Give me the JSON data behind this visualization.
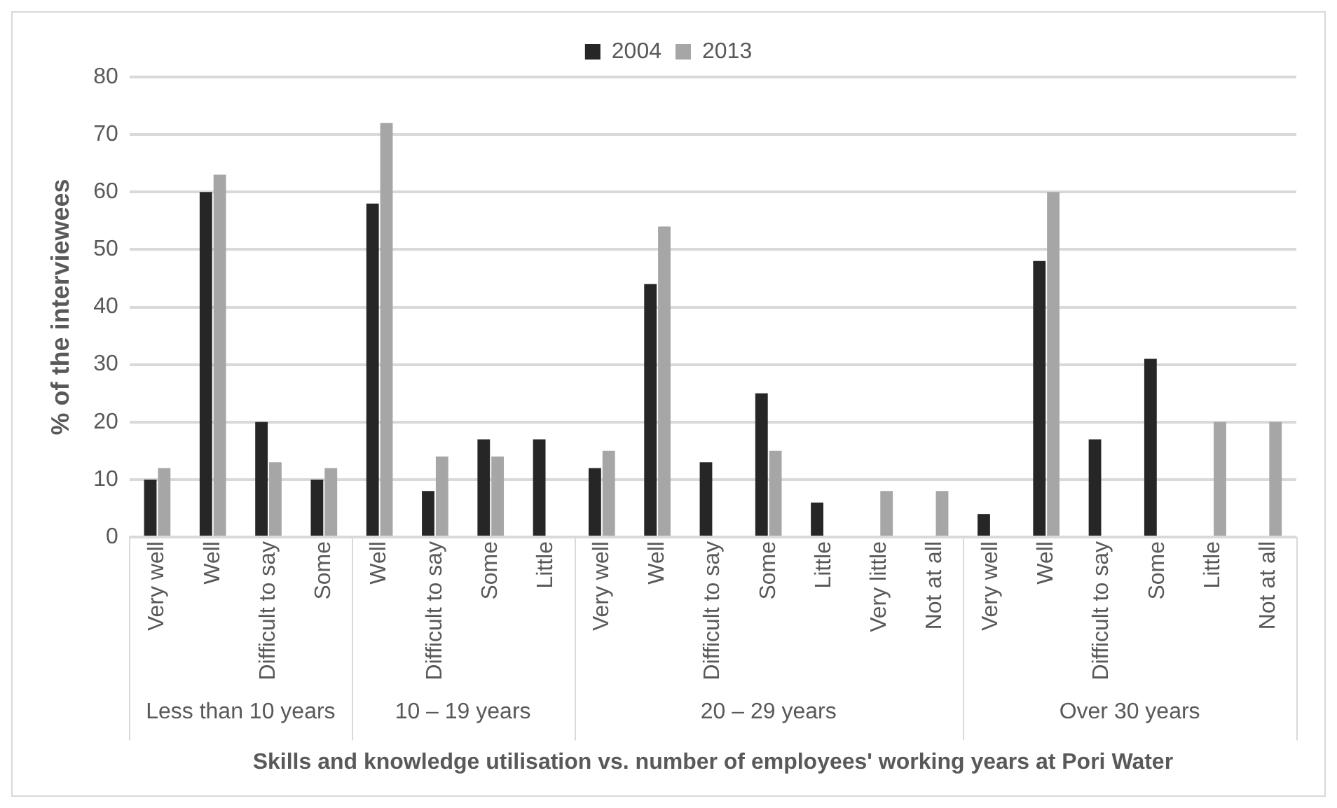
{
  "chart_data": {
    "type": "bar",
    "ylabel": "% of the interviewees",
    "xlabel": "Skills and knowledge utilisation vs. number of employees' working years at Pori Water",
    "categories": [
      "Very well",
      "Well",
      "Difficult to say",
      "Some",
      "Well",
      "Difficult to say",
      "Some",
      "Little",
      "Very well",
      "Well",
      "Difficult to say",
      "Some",
      "Little",
      "Very little",
      "Not at all",
      "Very well",
      "Well",
      "Difficult to say",
      "Some",
      "Little",
      "Not at all"
    ],
    "series": [
      {
        "name": "2004",
        "color": "#262626",
        "values": [
          10,
          60,
          20,
          10,
          58,
          8,
          17,
          17,
          12,
          44,
          13,
          25,
          6,
          null,
          null,
          4,
          48,
          17,
          31,
          null,
          null
        ]
      },
      {
        "name": "2013",
        "color": "#a6a6a6",
        "values": [
          12,
          63,
          13,
          12,
          72,
          14,
          14,
          null,
          15,
          54,
          null,
          15,
          null,
          8,
          8,
          null,
          60,
          null,
          null,
          20,
          20
        ]
      }
    ],
    "ylim": [
      0,
      80
    ],
    "yticks": [
      0,
      10,
      20,
      30,
      40,
      50,
      60,
      70,
      80
    ],
    "grid": "y",
    "legend": "top",
    "annotations": [
      "Less than 10 years",
      "10 – 19 years",
      "20 – 29 years",
      "Over 30 years"
    ]
  }
}
